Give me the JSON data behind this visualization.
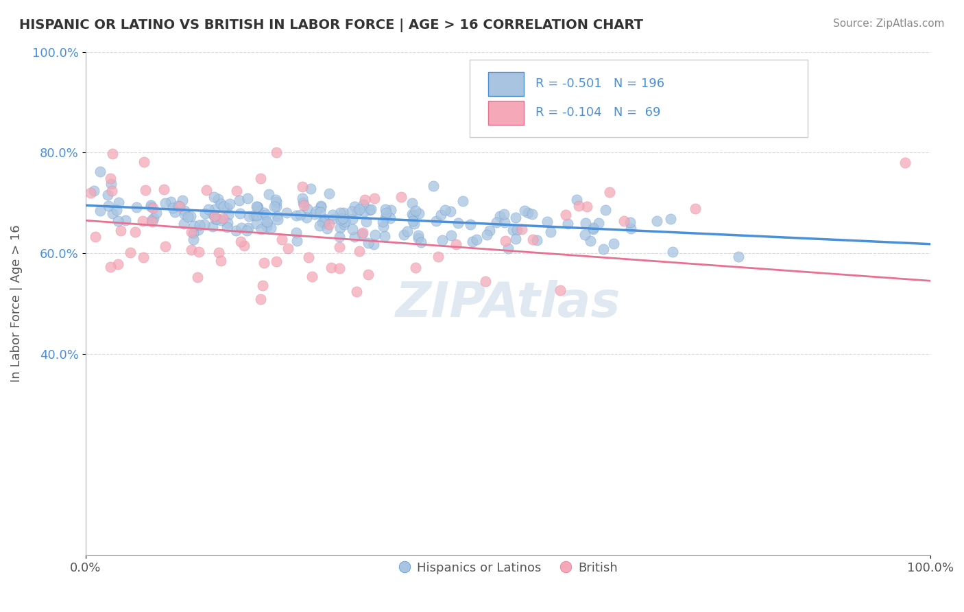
{
  "title": "HISPANIC OR LATINO VS BRITISH IN LABOR FORCE | AGE > 16 CORRELATION CHART",
  "source": "Source: ZipAtlas.com",
  "xlabel": "",
  "ylabel": "In Labor Force | Age > 16",
  "xlim": [
    0.0,
    1.0
  ],
  "ylim": [
    0.0,
    1.0
  ],
  "xtick_labels": [
    "0.0%",
    "100.0%"
  ],
  "ytick_labels": [
    "40.0%",
    "60.0%",
    "80.0%",
    "100.0%"
  ],
  "ytick_positions": [
    0.4,
    0.6,
    0.8,
    1.0
  ],
  "blue_R": "-0.501",
  "blue_N": "196",
  "pink_R": "-0.104",
  "pink_N": "69",
  "blue_color": "#a8c4e0",
  "pink_color": "#f4a8b8",
  "blue_line_color": "#4a90d9",
  "pink_line_color": "#e87090",
  "legend_label_blue": "Hispanics or Latinos",
  "legend_label_pink": "British",
  "watermark": "ZIPAtlas",
  "background_color": "#ffffff",
  "grid_color": "#cccccc",
  "title_color": "#333333",
  "blue_line_y_start": 0.695,
  "blue_line_y_end": 0.618,
  "pink_line_y_start": 0.665,
  "pink_line_y_end": 0.545
}
